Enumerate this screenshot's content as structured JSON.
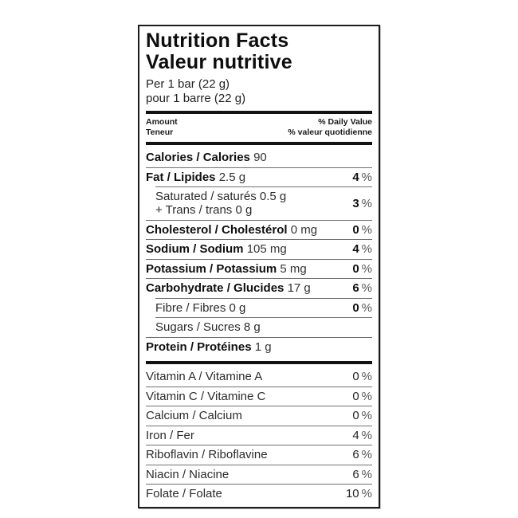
{
  "label": {
    "title_en": "Nutrition Facts",
    "title_fr": "Valeur nutritive",
    "serving_en": "Per 1 bar (22 g)",
    "serving_fr": "pour 1 barre (22 g)",
    "col_amount_en": "Amount",
    "col_amount_fr": "Teneur",
    "col_dv_en": "% Daily Value",
    "col_dv_fr": "% valeur quotidienne"
  },
  "nutrients": [
    {
      "name": "Calories / Calories",
      "value": "90",
      "dv": "",
      "pct": ""
    },
    {
      "name": "Fat / Lipides",
      "value": "2.5 g",
      "dv": "4",
      "pct": "%"
    },
    {
      "line1": "Saturated / saturés 0.5 g",
      "line2": "+ Trans / trans 0 g",
      "dv": "3",
      "pct": "%"
    },
    {
      "name": "Cholesterol / Cholestérol",
      "value": "0 mg",
      "dv": "0",
      "pct": "%"
    },
    {
      "name": "Sodium / Sodium",
      "value": "105 mg",
      "dv": "4",
      "pct": "%"
    },
    {
      "name": "Potassium / Potassium",
      "value": "5 mg",
      "dv": "0",
      "pct": "%"
    },
    {
      "name": "Carbohydrate / Glucides",
      "value": "17 g",
      "dv": "6",
      "pct": "%"
    },
    {
      "name": "Fibre / Fibres 0 g",
      "value": "",
      "dv": "0",
      "pct": "%"
    },
    {
      "name": "Sugars / Sucres 8 g",
      "value": "",
      "dv": "",
      "pct": ""
    },
    {
      "name": "Protein / Protéines",
      "value": "1 g",
      "dv": "",
      "pct": ""
    }
  ],
  "vitamins": [
    {
      "name": "Vitamin A / Vitamine A",
      "dv": "0",
      "pct": "%"
    },
    {
      "name": "Vitamin C / Vitamine C",
      "dv": "0",
      "pct": "%"
    },
    {
      "name": "Calcium / Calcium",
      "dv": "0",
      "pct": "%"
    },
    {
      "name": "Iron / Fer",
      "dv": "4",
      "pct": "%"
    },
    {
      "name": "Riboflavin / Riboflavine",
      "dv": "6",
      "pct": "%"
    },
    {
      "name": "Niacin / Niacine",
      "dv": "6",
      "pct": "%"
    },
    {
      "name": "Folate / Folate",
      "dv": "10",
      "pct": "%"
    }
  ]
}
